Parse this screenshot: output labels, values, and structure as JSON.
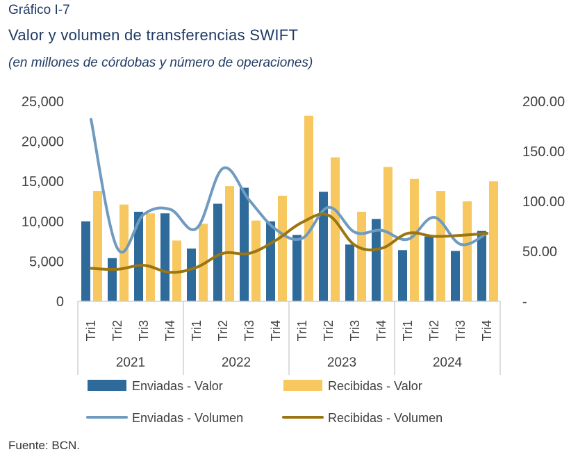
{
  "header": {
    "kicker": "Gráfico I-7",
    "title": "Valor y volumen de transferencias SWIFT",
    "subtitle": "(en millones de córdobas y número de operaciones)"
  },
  "footer": {
    "source": "Fuente: BCN."
  },
  "colors": {
    "enviadas_valor": "#2e6b9a",
    "recibidas_valor": "#f6c85f",
    "enviadas_volumen": "#6f9bc1",
    "recibidas_volumen": "#9a7512"
  },
  "chart_data": {
    "type": "bar",
    "categories": [
      "Tri1",
      "Tri2",
      "Tri3",
      "Tri4",
      "Tri1",
      "Tri2",
      "Tri3",
      "Tri4",
      "Tri1",
      "Tri2",
      "Tri3",
      "Tri4",
      "Tri1",
      "Tri2",
      "Tri3",
      "Tri4"
    ],
    "groups": [
      "2021",
      "2022",
      "2023",
      "2024"
    ],
    "y_left": {
      "ticks": [
        "25,000",
        "20,000",
        "15,000",
        "10,000",
        "5,000",
        "0"
      ],
      "range": [
        0,
        25000
      ]
    },
    "y_right": {
      "ticks": [
        "200.00",
        "150.00",
        "100.00",
        "50.00",
        "-"
      ],
      "range": [
        0,
        200
      ]
    },
    "legend_position": "bottom",
    "series": [
      {
        "name": "Enviadas - Valor",
        "kind": "bar",
        "axis": "left",
        "values": [
          10000,
          5400,
          11200,
          11000,
          6600,
          12200,
          14200,
          10000,
          8300,
          13700,
          7100,
          10300,
          6400,
          8100,
          6300,
          8800
        ]
      },
      {
        "name": "Recibidas - Valor",
        "kind": "bar",
        "axis": "left",
        "values": [
          13800,
          12100,
          11000,
          7600,
          9700,
          14400,
          10100,
          13200,
          23200,
          18000,
          11200,
          16800,
          15300,
          13800,
          12500,
          15000
        ]
      },
      {
        "name": "Enviadas - Volumen",
        "kind": "line",
        "axis": "right",
        "values": [
          182,
          53,
          87,
          92,
          73,
          133,
          101,
          72,
          63,
          94,
          69,
          71,
          62,
          84,
          57,
          68
        ]
      },
      {
        "name": "Recibidas - Volumen",
        "kind": "line",
        "axis": "right",
        "values": [
          33,
          32,
          36,
          29,
          34,
          48,
          48,
          61,
          79,
          86,
          56,
          53,
          68,
          65,
          66,
          68
        ]
      }
    ]
  }
}
